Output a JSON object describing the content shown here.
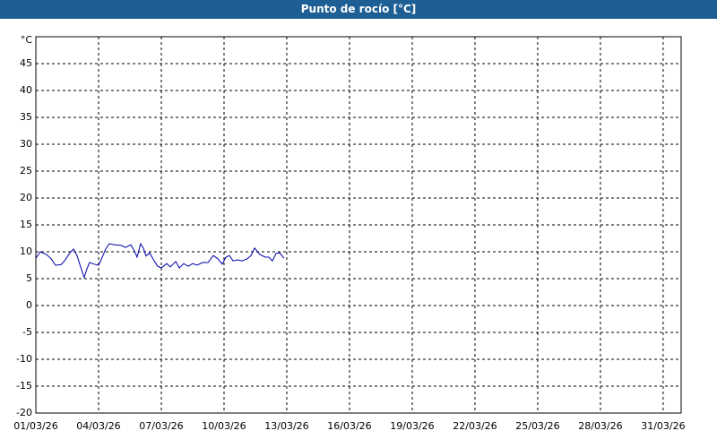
{
  "window_title": "Punto de rocío [°C]",
  "chart_data": {
    "type": "line",
    "y_unit": "°C",
    "x": [
      0,
      0.21,
      0.51,
      0.73,
      0.94,
      1.2,
      1.37,
      1.63,
      1.8,
      1.97,
      2.14,
      2.31,
      2.44,
      2.57,
      2.79,
      3,
      3.21,
      3.34,
      3.51,
      3.77,
      4.07,
      4.29,
      4.54,
      4.71,
      4.84,
      5.01,
      5.14,
      5.27,
      5.44,
      5.66,
      5.83,
      6,
      6.26,
      6.43,
      6.69,
      6.86,
      7.07,
      7.29,
      7.5,
      7.71,
      7.97,
      8.23,
      8.49,
      8.7,
      8.91,
      9.09,
      9.26,
      9.43,
      9.64,
      9.86,
      10.11,
      10.29,
      10.46,
      10.71,
      10.97,
      11.14,
      11.31,
      11.49,
      11.66,
      11.87
    ],
    "series": [
      {
        "color": "#0000a8",
        "values": [
          8.8,
          10,
          9.5,
          8.7,
          7.5,
          7.6,
          8.3,
          9.8,
          10.5,
          9.3,
          7.2,
          5.2,
          6.8,
          8,
          7.7,
          7.5,
          9.3,
          10.5,
          11.5,
          11.3,
          11.2,
          10.8,
          11.3,
          10.2,
          9,
          11.5,
          10.7,
          9.2,
          9.8,
          8.3,
          7.3,
          7,
          7.8,
          7.2,
          8.2,
          7,
          7.8,
          7.3,
          7.8,
          7.5,
          8,
          8,
          9.3,
          8.7,
          7.7,
          9,
          9.3,
          8.3,
          8.5,
          8.3,
          8.7,
          9.3,
          10.7,
          9.5,
          9,
          9,
          8.3,
          9.7,
          9.8,
          8.8
        ]
      }
    ],
    "xlim": [
      0,
      30.86
    ],
    "xticks": [
      {
        "value": 0,
        "label": "01/03/26"
      },
      {
        "value": 3,
        "label": "04/03/26"
      },
      {
        "value": 6,
        "label": "07/03/26"
      },
      {
        "value": 9,
        "label": "10/03/26"
      },
      {
        "value": 12,
        "label": "13/03/26"
      },
      {
        "value": 15,
        "label": "16/03/26"
      },
      {
        "value": 18,
        "label": "19/03/26"
      },
      {
        "value": 21,
        "label": "22/03/26"
      },
      {
        "value": 24,
        "label": "25/03/26"
      },
      {
        "value": 27,
        "label": "28/03/26"
      },
      {
        "value": 30,
        "label": "31/03/26"
      }
    ],
    "ylim": [
      -20,
      50
    ],
    "yticks": [
      -20,
      -15,
      -10,
      -5,
      0,
      5,
      10,
      15,
      20,
      25,
      30,
      35,
      40,
      45
    ],
    "grid": true
  }
}
